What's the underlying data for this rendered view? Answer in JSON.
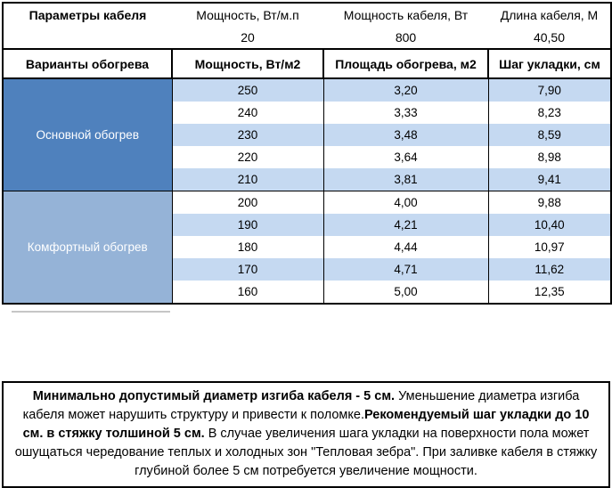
{
  "colors": {
    "blue_main": "#4f81bd",
    "blue_comfort": "#95b3d7",
    "row_stripe": "#c5d9f1",
    "border": "#000000",
    "label_text": "#ffffff"
  },
  "cable_params": {
    "title": "Параметры кабеля",
    "columns": [
      "Мощность, Вт/м.п",
      "Мощность кабеля, Вт",
      "Длина кабеля, М"
    ],
    "values": [
      "20",
      "800",
      "40,50"
    ]
  },
  "variants_header": {
    "col1": "Варианты обогрева",
    "col2": "Мощность, Вт/м2",
    "col3": "Площадь обогрева, м2",
    "col4": "Шаг укладки, см"
  },
  "groups": [
    {
      "label": "Основной обогрев",
      "rows": [
        [
          "250",
          "3,20",
          "7,90"
        ],
        [
          "240",
          "3,33",
          "8,23"
        ],
        [
          "230",
          "3,48",
          "8,59"
        ],
        [
          "220",
          "3,64",
          "8,98"
        ],
        [
          "210",
          "3,81",
          "9,41"
        ]
      ]
    },
    {
      "label": "Комфортный обогрев",
      "rows": [
        [
          "200",
          "4,00",
          "9,88"
        ],
        [
          "190",
          "4,21",
          "10,40"
        ],
        [
          "180",
          "4,44",
          "10,97"
        ],
        [
          "170",
          "4,71",
          "11,62"
        ],
        [
          "160",
          "5,00",
          "12,35"
        ]
      ]
    }
  ],
  "note": {
    "bold1": "Минимально допустимый диаметр изгиба кабеля - 5 см.",
    "text1": " Уменьшение диаметра изгиба кабеля может нарушить структуру и привести к поломке.",
    "bold2": "Рекомендуемый шаг укладки до 10 см. в стяжку толшиной 5 см.",
    "text2": " В случае увеличения шага укладки на поверхности пола может ошущаться чередование теплых и холодных зон \"Тепловая зебра\". При заливке кабеля в стяжку глубиной более 5 см потребуется увеличение мощности."
  }
}
